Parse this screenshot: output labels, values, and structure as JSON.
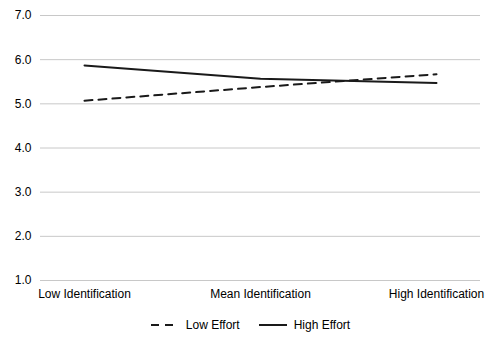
{
  "chart_data": {
    "type": "line",
    "categories": [
      "Low Identification",
      "Mean Identification",
      "High Identification"
    ],
    "series": [
      {
        "name": "Low Effort",
        "color": "#1a1a1a",
        "line_style": "dashed",
        "values": [
          5.07,
          5.38,
          5.67
        ]
      },
      {
        "name": "High Effort",
        "color": "#1a1a1a",
        "line_style": "solid",
        "values": [
          5.87,
          5.57,
          5.47
        ]
      }
    ],
    "ylim": [
      1,
      7
    ],
    "yticks": [
      1,
      2,
      3,
      4,
      5,
      6,
      7
    ],
    "grid": true,
    "legend": "bottom"
  }
}
